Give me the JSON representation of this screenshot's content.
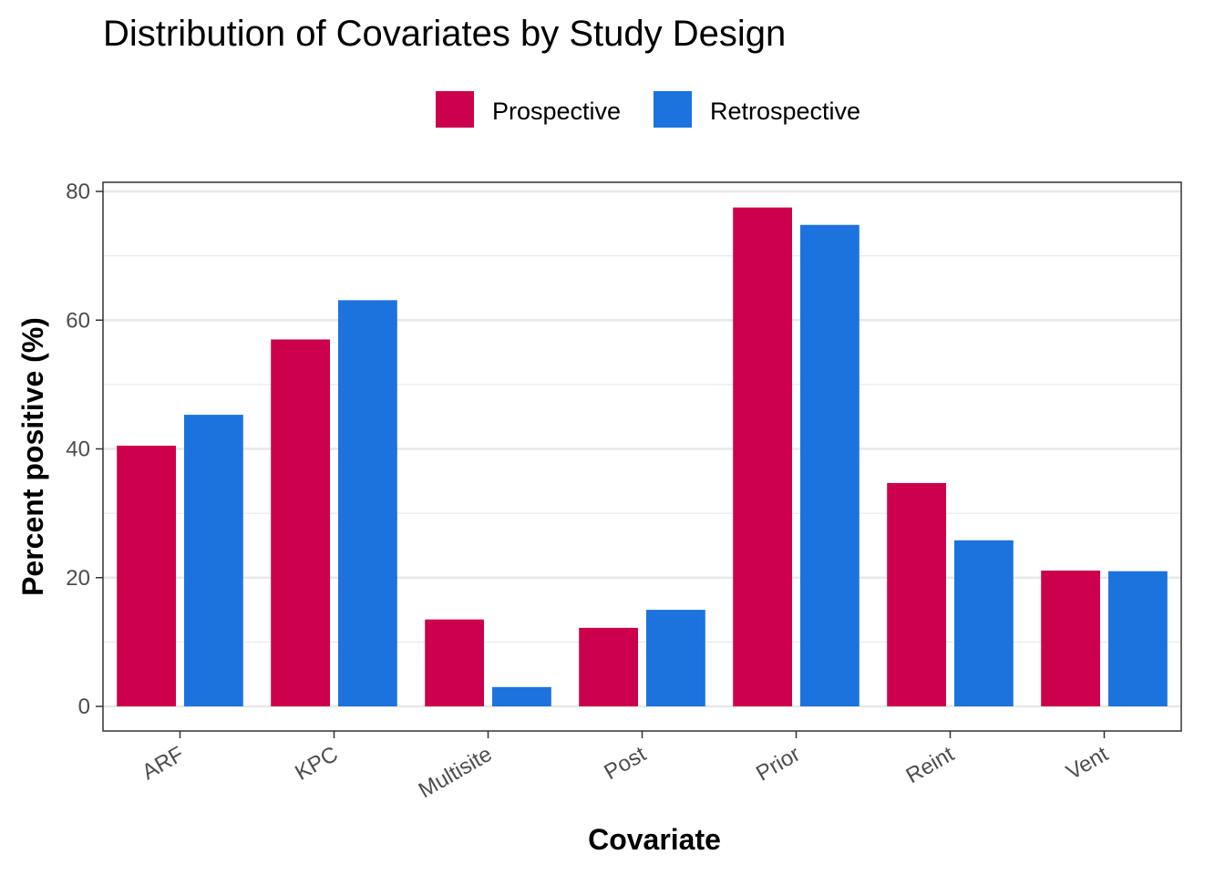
{
  "chart_data": {
    "type": "bar",
    "title": "Distribution of Covariates by Study Design",
    "xlabel": "Covariate",
    "ylabel": "Percent positive (%)",
    "categories": [
      "ARF",
      "KPC",
      "Multisite",
      "Post",
      "Prior",
      "Reint",
      "Vent"
    ],
    "series": [
      {
        "name": "Prospective",
        "color": "#CC004C",
        "values": [
          40.5,
          57.0,
          13.5,
          12.2,
          77.5,
          34.7,
          21.1
        ]
      },
      {
        "name": "Retrospective",
        "color": "#1C73DD",
        "values": [
          45.3,
          63.1,
          3.0,
          15.0,
          74.8,
          25.8,
          21.0
        ]
      }
    ],
    "ylim": [
      0,
      80
    ],
    "yticks": [
      0,
      20,
      40,
      60,
      80
    ],
    "grid": true,
    "legend_position": "top"
  }
}
